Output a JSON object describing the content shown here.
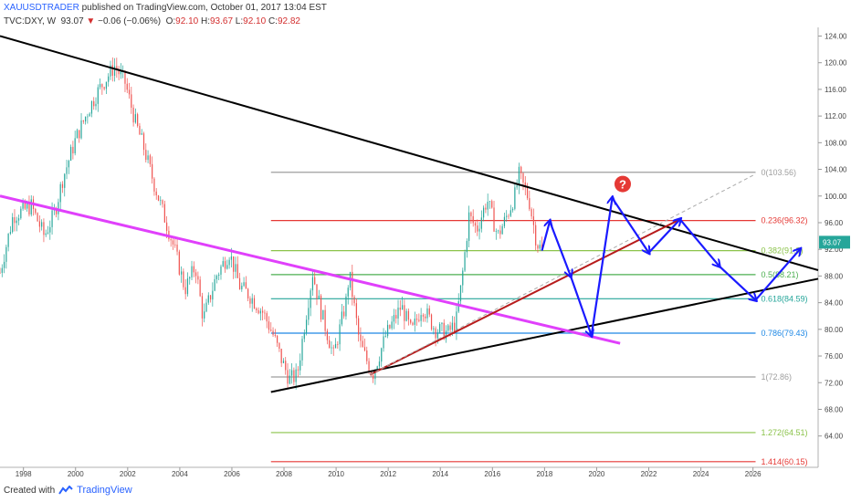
{
  "header": {
    "author": "XAUUSDTRADER",
    "published_text": "published on TradingView.com, October 01, 2017 13:04 EST",
    "symbol": "TVC:DXY, W",
    "last": "93.07",
    "change_arrow": "▼",
    "change": "−0.06 (−0.06%)",
    "ohlc": {
      "o_label": "O:",
      "o": "92.10",
      "h_label": "H:",
      "h": "93.67",
      "l_label": "L:",
      "l": "92.10",
      "c_label": "C:",
      "c": "92.82"
    }
  },
  "footer": {
    "created_with": "Created with",
    "brand": "TradingView",
    "logo_icon": "tradingview-logo-icon"
  },
  "price_badge": "93.07",
  "question_badge": "?",
  "colors": {
    "up_candle": "#26a69a",
    "down_candle": "#ef5350",
    "trendline": "#000000",
    "magenta_line": "#e040fb",
    "arrow": "#1a1aff",
    "darkred_line": "#b71c1c",
    "price_badge": "#26a69a"
  },
  "chart_data": {
    "type": "line",
    "title": "",
    "x_axis": {
      "labels": [
        "1998",
        "2000",
        "2002",
        "2004",
        "2006",
        "2008",
        "2010",
        "2012",
        "2014",
        "2016",
        "2018",
        "2020",
        "2022",
        "2024",
        "2026"
      ],
      "range": [
        1997.1,
        2028.5
      ]
    },
    "y_axis": {
      "labels": [
        "64.00",
        "68.00",
        "72.00",
        "76.00",
        "80.00",
        "84.00",
        "88.00",
        "92.00",
        "96.00",
        "100.00",
        "104.00",
        "108.00",
        "112.00",
        "116.00",
        "120.00",
        "124.00"
      ],
      "range": [
        59.3,
        125.3
      ],
      "side": "right"
    },
    "price_series_approx": [
      [
        1997.1,
        88.5
      ],
      [
        1997.6,
        97.0
      ],
      [
        1998.3,
        98.5
      ],
      [
        1998.8,
        94.0
      ],
      [
        1999.2,
        97.5
      ],
      [
        1999.5,
        102.5
      ],
      [
        2000.0,
        108.5
      ],
      [
        2000.5,
        113.0
      ],
      [
        2000.9,
        116.0
      ],
      [
        2001.5,
        119.5
      ],
      [
        2001.9,
        117.0
      ],
      [
        2002.3,
        111.0
      ],
      [
        2002.6,
        107.5
      ],
      [
        2003.0,
        102.0
      ],
      [
        2003.4,
        97.0
      ],
      [
        2003.8,
        92.0
      ],
      [
        2004.2,
        86.0
      ],
      [
        2004.6,
        89.5
      ],
      [
        2004.9,
        81.5
      ],
      [
        2005.4,
        88.0
      ],
      [
        2005.9,
        91.5
      ],
      [
        2006.3,
        86.5
      ],
      [
        2006.7,
        85.0
      ],
      [
        2007.2,
        82.5
      ],
      [
        2007.6,
        79.0
      ],
      [
        2007.9,
        75.5
      ],
      [
        2008.2,
        72.5
      ],
      [
        2008.5,
        73.0
      ],
      [
        2008.8,
        81.0
      ],
      [
        2009.1,
        88.5
      ],
      [
        2009.4,
        83.0
      ],
      [
        2009.9,
        76.0
      ],
      [
        2010.4,
        84.5
      ],
      [
        2010.5,
        88.5
      ],
      [
        2010.9,
        78.0
      ],
      [
        2011.4,
        73.2
      ],
      [
        2011.9,
        79.0
      ],
      [
        2012.5,
        83.5
      ],
      [
        2012.9,
        79.5
      ],
      [
        2013.3,
        83.5
      ],
      [
        2013.8,
        80.0
      ],
      [
        2014.3,
        79.5
      ],
      [
        2014.6,
        81.0
      ],
      [
        2014.8,
        86.5
      ],
      [
        2015.1,
        97.0
      ],
      [
        2015.4,
        95.0
      ],
      [
        2015.8,
        99.5
      ],
      [
        2016.2,
        94.0
      ],
      [
        2016.5,
        96.5
      ],
      [
        2016.9,
        100.5
      ],
      [
        2017.0,
        103.3
      ],
      [
        2017.4,
        99.5
      ],
      [
        2017.7,
        93.0
      ],
      [
        2017.9,
        91.8
      ]
    ],
    "fibonacci_levels": [
      {
        "ratio": "0",
        "value": 103.56,
        "label": "0(103.56)",
        "color": "#9e9e9e"
      },
      {
        "ratio": "0.236",
        "value": 96.32,
        "label": "0.236(96.32)",
        "color": "#e53935"
      },
      {
        "ratio": "0.382",
        "value": 91.8,
        "label": "0.382(91.8)",
        "color": "#8bc34a"
      },
      {
        "ratio": "0.5",
        "value": 88.21,
        "label": "0.5(88.21)",
        "color": "#4caf50"
      },
      {
        "ratio": "0.618",
        "value": 84.59,
        "label": "0.618(84.59)",
        "color": "#26a69a"
      },
      {
        "ratio": "0.786",
        "value": 79.43,
        "label": "0.786(79.43)",
        "color": "#1e88e5"
      },
      {
        "ratio": "1",
        "value": 72.86,
        "label": "1(72.86)",
        "color": "#9e9e9e"
      },
      {
        "ratio": "1.272",
        "value": 64.51,
        "label": "1.272(64.51)",
        "color": "#8bc34a"
      },
      {
        "ratio": "1.414",
        "value": 60.15,
        "label": "1.414(60.15)",
        "color": "#e53935"
      }
    ],
    "fibonacci_span_x": [
      2007.5,
      2026.1
    ],
    "trendlines": [
      {
        "name": "upper-resistance",
        "from": [
          1997.1,
          124.0
        ],
        "to": [
          2030.0,
          87.2
        ],
        "color": "#000000"
      },
      {
        "name": "lower-support",
        "from": [
          2007.5,
          70.6
        ],
        "to": [
          2030.0,
          88.8
        ],
        "color": "#000000"
      },
      {
        "name": "magenta-trendline",
        "from": [
          1997.1,
          100.0
        ],
        "to": [
          2020.9,
          77.9
        ],
        "color": "#e040fb"
      },
      {
        "name": "darkred-trendline",
        "from": [
          2011.3,
          73.2
        ],
        "to": [
          2023.2,
          96.5
        ],
        "color": "#b71c1c"
      },
      {
        "name": "gray-dashed",
        "from": [
          2011.3,
          73.2
        ],
        "to": [
          2026.1,
          103.3
        ],
        "color": "#aaaaaa",
        "dashed": true
      }
    ],
    "projection_path": [
      [
        2017.9,
        91.8
      ],
      [
        2018.2,
        96.2
      ],
      [
        2019.0,
        88.0
      ],
      [
        2019.8,
        79.1
      ],
      [
        2020.6,
        99.7
      ],
      [
        2022.0,
        91.5
      ],
      [
        2023.2,
        96.5
      ],
      [
        2024.7,
        89.5
      ],
      [
        2026.1,
        84.4
      ],
      [
        2027.8,
        92.0
      ]
    ],
    "question_mark_at": [
      2021.0,
      101.8
    ]
  }
}
